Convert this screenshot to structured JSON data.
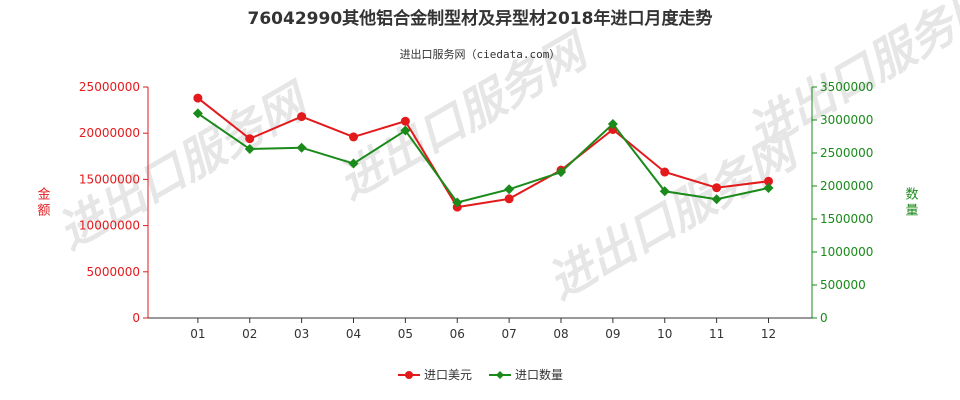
{
  "chart_data": {
    "type": "line",
    "title": "76042990其他铝合金制型材及异型材2018年进口月度走势",
    "subtitle": "进出口服务网（ciedata.com）",
    "watermark": "进出口服务网",
    "categories": [
      "01",
      "02",
      "03",
      "04",
      "05",
      "06",
      "07",
      "08",
      "09",
      "10",
      "11",
      "12"
    ],
    "left_axis": {
      "label": "金额",
      "ylim": [
        0,
        25000000
      ],
      "ticks": [
        "0",
        "5000000",
        "10000000",
        "15000000",
        "20000000",
        "25000000"
      ],
      "color": "#e31a1c"
    },
    "right_axis": {
      "label": "数量",
      "ylim": [
        0,
        3500000
      ],
      "ticks": [
        "0",
        "500000",
        "1000000",
        "1500000",
        "2000000",
        "2500000",
        "3000000",
        "3500000"
      ],
      "color": "#1a8a1a"
    },
    "series": [
      {
        "name": "进口美元",
        "axis": "left",
        "color": "#e31a1c",
        "marker": "circle",
        "values": [
          23800000,
          19400000,
          21800000,
          19600000,
          21300000,
          12000000,
          12900000,
          16000000,
          20400000,
          15800000,
          14100000,
          14800000
        ]
      },
      {
        "name": "进口数量",
        "axis": "right",
        "color": "#1a8a1a",
        "marker": "diamond",
        "values": [
          3100000,
          2560000,
          2580000,
          2340000,
          2840000,
          1750000,
          1950000,
          2210000,
          2940000,
          1920000,
          1800000,
          1970000
        ]
      }
    ],
    "grid": false,
    "legend_position": "bottom"
  }
}
